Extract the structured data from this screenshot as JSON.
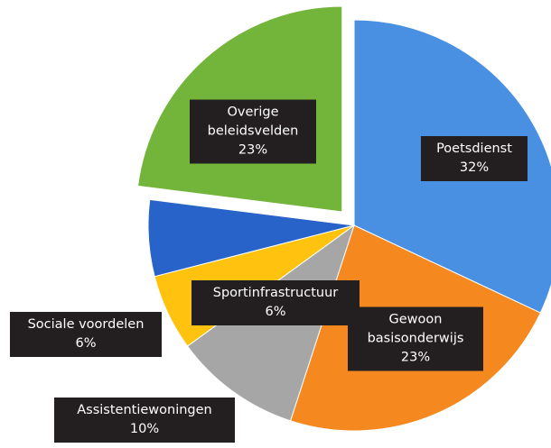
{
  "chart_data": {
    "type": "pie",
    "categories": [
      "Poetsdienst",
      "Gewoon basisonderwijs",
      "Assistentiewoningen",
      "Sociale voordelen",
      "Sportinfrastructuur",
      "Overige beleidsvelden"
    ],
    "values": [
      32,
      23,
      10,
      6,
      6,
      23
    ],
    "value_labels": [
      "32%",
      "23%",
      "10%",
      "6%",
      "6%",
      "23%"
    ],
    "colors": [
      "#4a90e2",
      "#f5891f",
      "#a6a6a6",
      "#ffc20e",
      "#2763c9",
      "#73b43a"
    ]
  }
}
